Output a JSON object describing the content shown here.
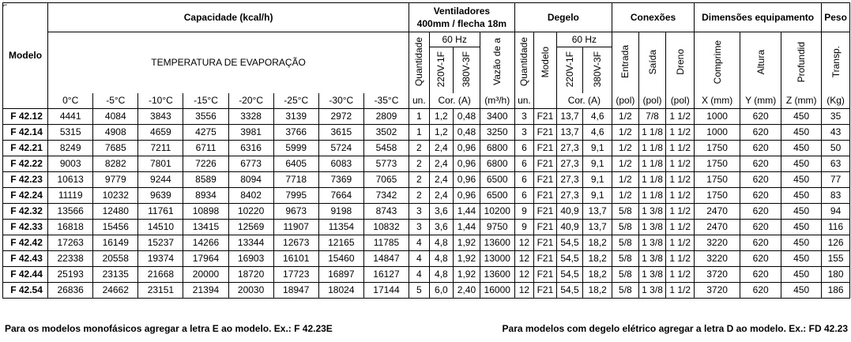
{
  "header": {
    "modelo": "Modelo",
    "capacidade": "Capacidade (kcal/h)",
    "temperatura": "TEMPERATURA DE EVAPORAÇÃO",
    "temps": [
      "0°C",
      "-5°C",
      "-10°C",
      "-15°C",
      "-20°C",
      "-25°C",
      "-30°C",
      "-35°C"
    ],
    "ventiladores_l1": "Ventiladores",
    "ventiladores_l2": "400mm / flecha 18m",
    "degelo": "Degelo",
    "conexoes": "Conexões",
    "dimensoes": "Dimensões equipamento",
    "peso": "Peso",
    "hz_vent": "60 Hz",
    "hz_deg": "60 Hz",
    "vent_cols": [
      "Quantidade",
      "220V-1F",
      "380V-3F",
      "Vazão de a"
    ],
    "deg_cols": [
      "Quantidade",
      "Modelo",
      "220V-1F",
      "380V-3F"
    ],
    "con_cols": [
      "Entrada",
      "Saída",
      "Dreno"
    ],
    "dim_cols": [
      "Comprime",
      "Altura",
      "Profundid"
    ],
    "peso_col": "Transp.",
    "units": {
      "vent_qty": "un.",
      "vent_cor": "Cor. (A)",
      "vent_vazao": "(m³/h)",
      "deg_qty": "un.",
      "deg_cor": "Cor. (A)",
      "entrada": "(pol)",
      "saida": "(pol)",
      "dreno": "(pol)",
      "x": "X (mm)",
      "y": "Y (mm)",
      "z": "Z (mm)",
      "kg": "(Kg)"
    }
  },
  "rows": [
    [
      "F 42.12",
      "4441",
      "4084",
      "3843",
      "3556",
      "3328",
      "3139",
      "2972",
      "2809",
      "1",
      "1,2",
      "0,48",
      "3400",
      "3",
      "F21",
      "13,7",
      "4,6",
      "1/2",
      "7/8",
      "1 1/2",
      "1000",
      "620",
      "450",
      "35"
    ],
    [
      "F 42.14",
      "5315",
      "4908",
      "4659",
      "4275",
      "3981",
      "3766",
      "3615",
      "3502",
      "1",
      "1,2",
      "0,48",
      "3250",
      "3",
      "F21",
      "13,7",
      "4,6",
      "1/2",
      "1 1/8",
      "1 1/2",
      "1000",
      "620",
      "450",
      "43"
    ],
    [
      "F 42.21",
      "8249",
      "7685",
      "7211",
      "6711",
      "6316",
      "5999",
      "5724",
      "5458",
      "2",
      "2,4",
      "0,96",
      "6800",
      "6",
      "F21",
      "27,3",
      "9,1",
      "1/2",
      "1 1/8",
      "1 1/2",
      "1750",
      "620",
      "450",
      "50"
    ],
    [
      "F 42.22",
      "9003",
      "8282",
      "7801",
      "7226",
      "6773",
      "6405",
      "6083",
      "5773",
      "2",
      "2,4",
      "0,96",
      "6800",
      "6",
      "F21",
      "27,3",
      "9,1",
      "1/2",
      "1 1/8",
      "1 1/2",
      "1750",
      "620",
      "450",
      "63"
    ],
    [
      "F 42.23",
      "10613",
      "9779",
      "9244",
      "8589",
      "8094",
      "7718",
      "7369",
      "7065",
      "2",
      "2,4",
      "0,96",
      "6500",
      "6",
      "F21",
      "27,3",
      "9,1",
      "1/2",
      "1 1/8",
      "1 1/2",
      "1750",
      "620",
      "450",
      "77"
    ],
    [
      "F 42.24",
      "11119",
      "10232",
      "9639",
      "8934",
      "8402",
      "7995",
      "7664",
      "7342",
      "2",
      "2,4",
      "0,96",
      "6500",
      "6",
      "F21",
      "27,3",
      "9,1",
      "1/2",
      "1 1/8",
      "1 1/2",
      "1750",
      "620",
      "450",
      "83"
    ],
    [
      "F 42.32",
      "13566",
      "12480",
      "11761",
      "10898",
      "10220",
      "9673",
      "9198",
      "8743",
      "3",
      "3,6",
      "1,44",
      "10200",
      "9",
      "F21",
      "40,9",
      "13,7",
      "5/8",
      "1 3/8",
      "1 1/2",
      "2470",
      "620",
      "450",
      "94"
    ],
    [
      "F 42.33",
      "16818",
      "15456",
      "14510",
      "13415",
      "12569",
      "11907",
      "11354",
      "10832",
      "3",
      "3,6",
      "1,44",
      "9750",
      "9",
      "F21",
      "40,9",
      "13,7",
      "5/8",
      "1 3/8",
      "1 1/2",
      "2470",
      "620",
      "450",
      "116"
    ],
    [
      "F 42.42",
      "17263",
      "16149",
      "15237",
      "14266",
      "13344",
      "12673",
      "12165",
      "11785",
      "4",
      "4,8",
      "1,92",
      "13600",
      "12",
      "F21",
      "54,5",
      "18,2",
      "5/8",
      "1 3/8",
      "1 1/2",
      "3220",
      "620",
      "450",
      "126"
    ],
    [
      "F 42.43",
      "22338",
      "20558",
      "19374",
      "17964",
      "16903",
      "16101",
      "15460",
      "14847",
      "4",
      "4,8",
      "1,92",
      "13000",
      "12",
      "F21",
      "54,5",
      "18,2",
      "5/8",
      "1 3/8",
      "1 1/2",
      "3220",
      "620",
      "450",
      "155"
    ],
    [
      "F 42.44",
      "25193",
      "23135",
      "21668",
      "20000",
      "18720",
      "17723",
      "16897",
      "16127",
      "4",
      "4,8",
      "1,92",
      "13600",
      "12",
      "F21",
      "54,5",
      "18,2",
      "5/8",
      "1 3/8",
      "1 1/2",
      "3720",
      "620",
      "450",
      "180"
    ],
    [
      "F 42.54",
      "26836",
      "24662",
      "23151",
      "21394",
      "20030",
      "18947",
      "18024",
      "17144",
      "5",
      "6,0",
      "2,40",
      "16000",
      "12",
      "F21",
      "54,5",
      "18,2",
      "5/8",
      "1 3/8",
      "1 1/2",
      "3720",
      "620",
      "450",
      "186"
    ]
  ],
  "footer": {
    "left": "Para os modelos monofásicos agregar a letra E ao modelo. Ex.: F 42.23E",
    "right": "Para modelos com degelo elétrico agregar a letra D ao modelo. Ex.: FD 42.23"
  }
}
